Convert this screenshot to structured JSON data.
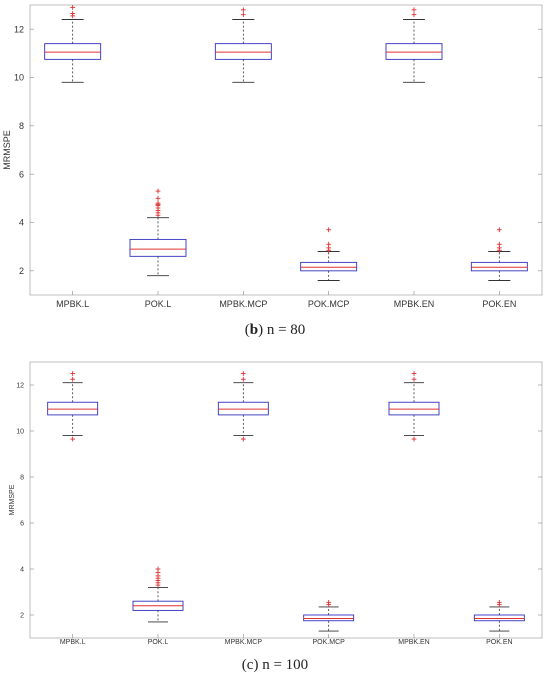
{
  "chart_data": [
    {
      "type": "box",
      "panel_label": "b",
      "caption_rest": " n = 80",
      "ylabel": "MRMSPE",
      "ylim": [
        1,
        13
      ],
      "yticks": [
        2,
        4,
        6,
        8,
        10,
        12
      ],
      "categories": [
        "MPBK.L",
        "POK.L",
        "MPBK.MCP",
        "POK.MCP",
        "MPBK.EN",
        "POK.EN"
      ],
      "boxes": [
        {
          "q1": 10.75,
          "median": 11.05,
          "q3": 11.4,
          "whisker_low": 9.8,
          "whisker_high": 12.4,
          "outliers": [
            12.55,
            12.65,
            12.9
          ]
        },
        {
          "q1": 2.6,
          "median": 2.9,
          "q3": 3.3,
          "whisker_low": 1.8,
          "whisker_high": 4.2,
          "outliers": [
            4.3,
            4.4,
            4.5,
            4.6,
            4.7,
            4.75,
            4.8,
            5.0,
            5.3
          ]
        },
        {
          "q1": 10.75,
          "median": 11.05,
          "q3": 11.4,
          "whisker_low": 9.8,
          "whisker_high": 12.4,
          "outliers": [
            12.6,
            12.8
          ]
        },
        {
          "q1": 2.0,
          "median": 2.15,
          "q3": 2.35,
          "whisker_low": 1.6,
          "whisker_high": 2.8,
          "outliers": [
            2.85,
            2.95,
            3.1,
            3.7
          ]
        },
        {
          "q1": 10.75,
          "median": 11.05,
          "q3": 11.4,
          "whisker_low": 9.8,
          "whisker_high": 12.4,
          "outliers": [
            12.6,
            12.8
          ]
        },
        {
          "q1": 2.0,
          "median": 2.15,
          "q3": 2.35,
          "whisker_low": 1.6,
          "whisker_high": 2.8,
          "outliers": [
            2.85,
            2.95,
            3.1,
            3.7
          ]
        }
      ],
      "colors": {
        "box": "#3030c0",
        "median": "#e03030",
        "outlier": "#e03030",
        "whisker": "#333333"
      }
    },
    {
      "type": "box",
      "panel_label": "c",
      "caption_rest": " n = 100",
      "ylabel": "MRMSPE",
      "ylim": [
        1,
        13
      ],
      "yticks": [
        2,
        4,
        6,
        8,
        10,
        12
      ],
      "categories": [
        "MPBK.L",
        "POK.L",
        "MPBK.MCP",
        "POK.MCP",
        "MPBK.EN",
        "POK.EN"
      ],
      "boxes": [
        {
          "q1": 10.7,
          "median": 10.95,
          "q3": 11.25,
          "whisker_low": 9.8,
          "whisker_high": 12.1,
          "outliers": [
            9.65,
            12.25,
            12.5
          ]
        },
        {
          "q1": 2.2,
          "median": 2.4,
          "q3": 2.6,
          "whisker_low": 1.7,
          "whisker_high": 3.2,
          "outliers": [
            3.3,
            3.4,
            3.5,
            3.6,
            3.7,
            3.85,
            4.0
          ]
        },
        {
          "q1": 10.7,
          "median": 10.95,
          "q3": 11.25,
          "whisker_low": 9.8,
          "whisker_high": 12.1,
          "outliers": [
            9.65,
            12.25,
            12.5
          ]
        },
        {
          "q1": 1.75,
          "median": 1.85,
          "q3": 2.0,
          "whisker_low": 1.3,
          "whisker_high": 2.35,
          "outliers": [
            2.45,
            2.55
          ]
        },
        {
          "q1": 10.7,
          "median": 10.95,
          "q3": 11.25,
          "whisker_low": 9.8,
          "whisker_high": 12.1,
          "outliers": [
            9.65,
            12.25,
            12.5
          ]
        },
        {
          "q1": 1.75,
          "median": 1.85,
          "q3": 2.0,
          "whisker_low": 1.3,
          "whisker_high": 2.35,
          "outliers": [
            2.45,
            2.55
          ]
        }
      ],
      "colors": {
        "box": "#3030c0",
        "median": "#e03030",
        "outlier": "#e03030",
        "whisker": "#333333"
      }
    }
  ]
}
